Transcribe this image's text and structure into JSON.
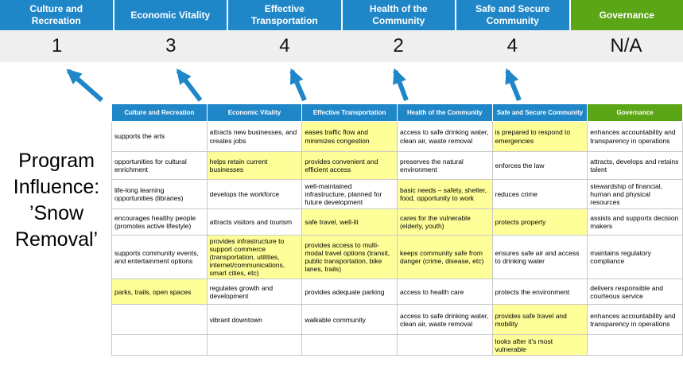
{
  "title": "Program Influence: ’Snow Removal’",
  "colors": {
    "blue": "#1f86c8",
    "green": "#5ba616",
    "highlight": "#ffff99",
    "score_bg": "#efefef"
  },
  "categories": [
    {
      "label": "Culture and Recreation",
      "color": "blue",
      "score": "1",
      "arrow": true
    },
    {
      "label": "Economic Vitality",
      "color": "blue",
      "score": "3",
      "arrow": true
    },
    {
      "label": "Effective Transportation",
      "color": "blue",
      "score": "4",
      "arrow": true
    },
    {
      "label": "Health of the Community",
      "color": "blue",
      "score": "2",
      "arrow": true
    },
    {
      "label": "Safe and Secure Community",
      "color": "blue",
      "score": "4",
      "arrow": true
    },
    {
      "label": "Governance",
      "color": "green",
      "score": "N/A",
      "arrow": false
    }
  ],
  "table": {
    "columns": [
      {
        "label": "Culture and Recreation",
        "color": "blue"
      },
      {
        "label": "Economic Vitality",
        "color": "blue"
      },
      {
        "label": "Effective Transportation",
        "color": "blue"
      },
      {
        "label": "Health of the Community",
        "color": "blue"
      },
      {
        "label": "Safe and Secure Community",
        "color": "blue"
      },
      {
        "label": "Governance",
        "color": "green"
      }
    ],
    "rows": [
      {
        "cells": [
          {
            "text": "supports the arts",
            "highlight": false
          },
          {
            "text": "attracts new businesses, and creates jobs",
            "highlight": false
          },
          {
            "text": "eases traffic flow and minimizes congestion",
            "highlight": true
          },
          {
            "text": "access to safe drinking water, clean air, waste removal",
            "highlight": false
          },
          {
            "text": "is prepared to respond to emergencies",
            "highlight": true
          },
          {
            "text": "enhances accountability and transparency in operations",
            "highlight": false
          }
        ]
      },
      {
        "cells": [
          {
            "text": "opportunities for cultural enrichment",
            "highlight": false
          },
          {
            "text": "helps retain current businesses",
            "highlight": true
          },
          {
            "text": "provides convenient and efficient access",
            "highlight": true
          },
          {
            "text": "preserves the natural environment",
            "highlight": false
          },
          {
            "text": "enforces the law",
            "highlight": false
          },
          {
            "text": "attracts, develops and retains talent",
            "highlight": false
          }
        ]
      },
      {
        "cells": [
          {
            "text": "life-long learning opportunities (libraries)",
            "highlight": false
          },
          {
            "text": "develops the workforce",
            "highlight": false
          },
          {
            "text": "well-maintained infrastructure, planned for future development",
            "highlight": false
          },
          {
            "text": "basic needs – safety, shelter, food, opportunity to work",
            "highlight": true
          },
          {
            "text": "reduces crime",
            "highlight": false
          },
          {
            "text": "stewardship of financial, human and physical resources",
            "highlight": false
          }
        ]
      },
      {
        "cells": [
          {
            "text": "encourages healthy people (promotes active lifestyle)",
            "highlight": false
          },
          {
            "text": "attracts visitors and tourism",
            "highlight": false
          },
          {
            "text": "safe travel, well-lit",
            "highlight": true
          },
          {
            "text": "cares for the vulnerable (elderly, youth)",
            "highlight": true
          },
          {
            "text": "protects property",
            "highlight": true
          },
          {
            "text": "assists and supports decision makers",
            "highlight": false
          }
        ]
      },
      {
        "cells": [
          {
            "text": "supports community events, and entertainment options",
            "highlight": false
          },
          {
            "text": "provides infrastructure to support commerce (transportation, utilities, internet/communications, smart cities, etc)",
            "highlight": true
          },
          {
            "text": "provides access to multi-modal travel options (transit, public transportation, bike lanes, trails)",
            "highlight": true
          },
          {
            "text": "keeps community safe from danger (crime, disease, etc)",
            "highlight": true
          },
          {
            "text": "ensures safe air and access to drinking water",
            "highlight": false
          },
          {
            "text": "maintains regulatory compliance",
            "highlight": false
          }
        ]
      },
      {
        "cells": [
          {
            "text": "parks, trails, open spaces",
            "highlight": true
          },
          {
            "text": "regulates growth and development",
            "highlight": false
          },
          {
            "text": "provides adequate parking",
            "highlight": false
          },
          {
            "text": "access to health care",
            "highlight": false
          },
          {
            "text": "protects the environment",
            "highlight": false
          },
          {
            "text": "delivers responsible and courteous service",
            "highlight": false
          }
        ]
      },
      {
        "cells": [
          {
            "text": "",
            "highlight": false
          },
          {
            "text": "vibrant downtown",
            "highlight": false
          },
          {
            "text": "walkable community",
            "highlight": false
          },
          {
            "text": "access to safe drinking water, clean air, waste removal",
            "highlight": false
          },
          {
            "text": "provides safe travel and mobility",
            "highlight": true
          },
          {
            "text": "enhances accountability and transparency in operations",
            "highlight": false
          }
        ]
      },
      {
        "cells": [
          {
            "text": "",
            "highlight": false
          },
          {
            "text": "",
            "highlight": false
          },
          {
            "text": "",
            "highlight": false
          },
          {
            "text": "",
            "highlight": false
          },
          {
            "text": "looks after it's most vulnerable",
            "highlight": true
          },
          {
            "text": "",
            "highlight": false
          }
        ]
      }
    ]
  }
}
